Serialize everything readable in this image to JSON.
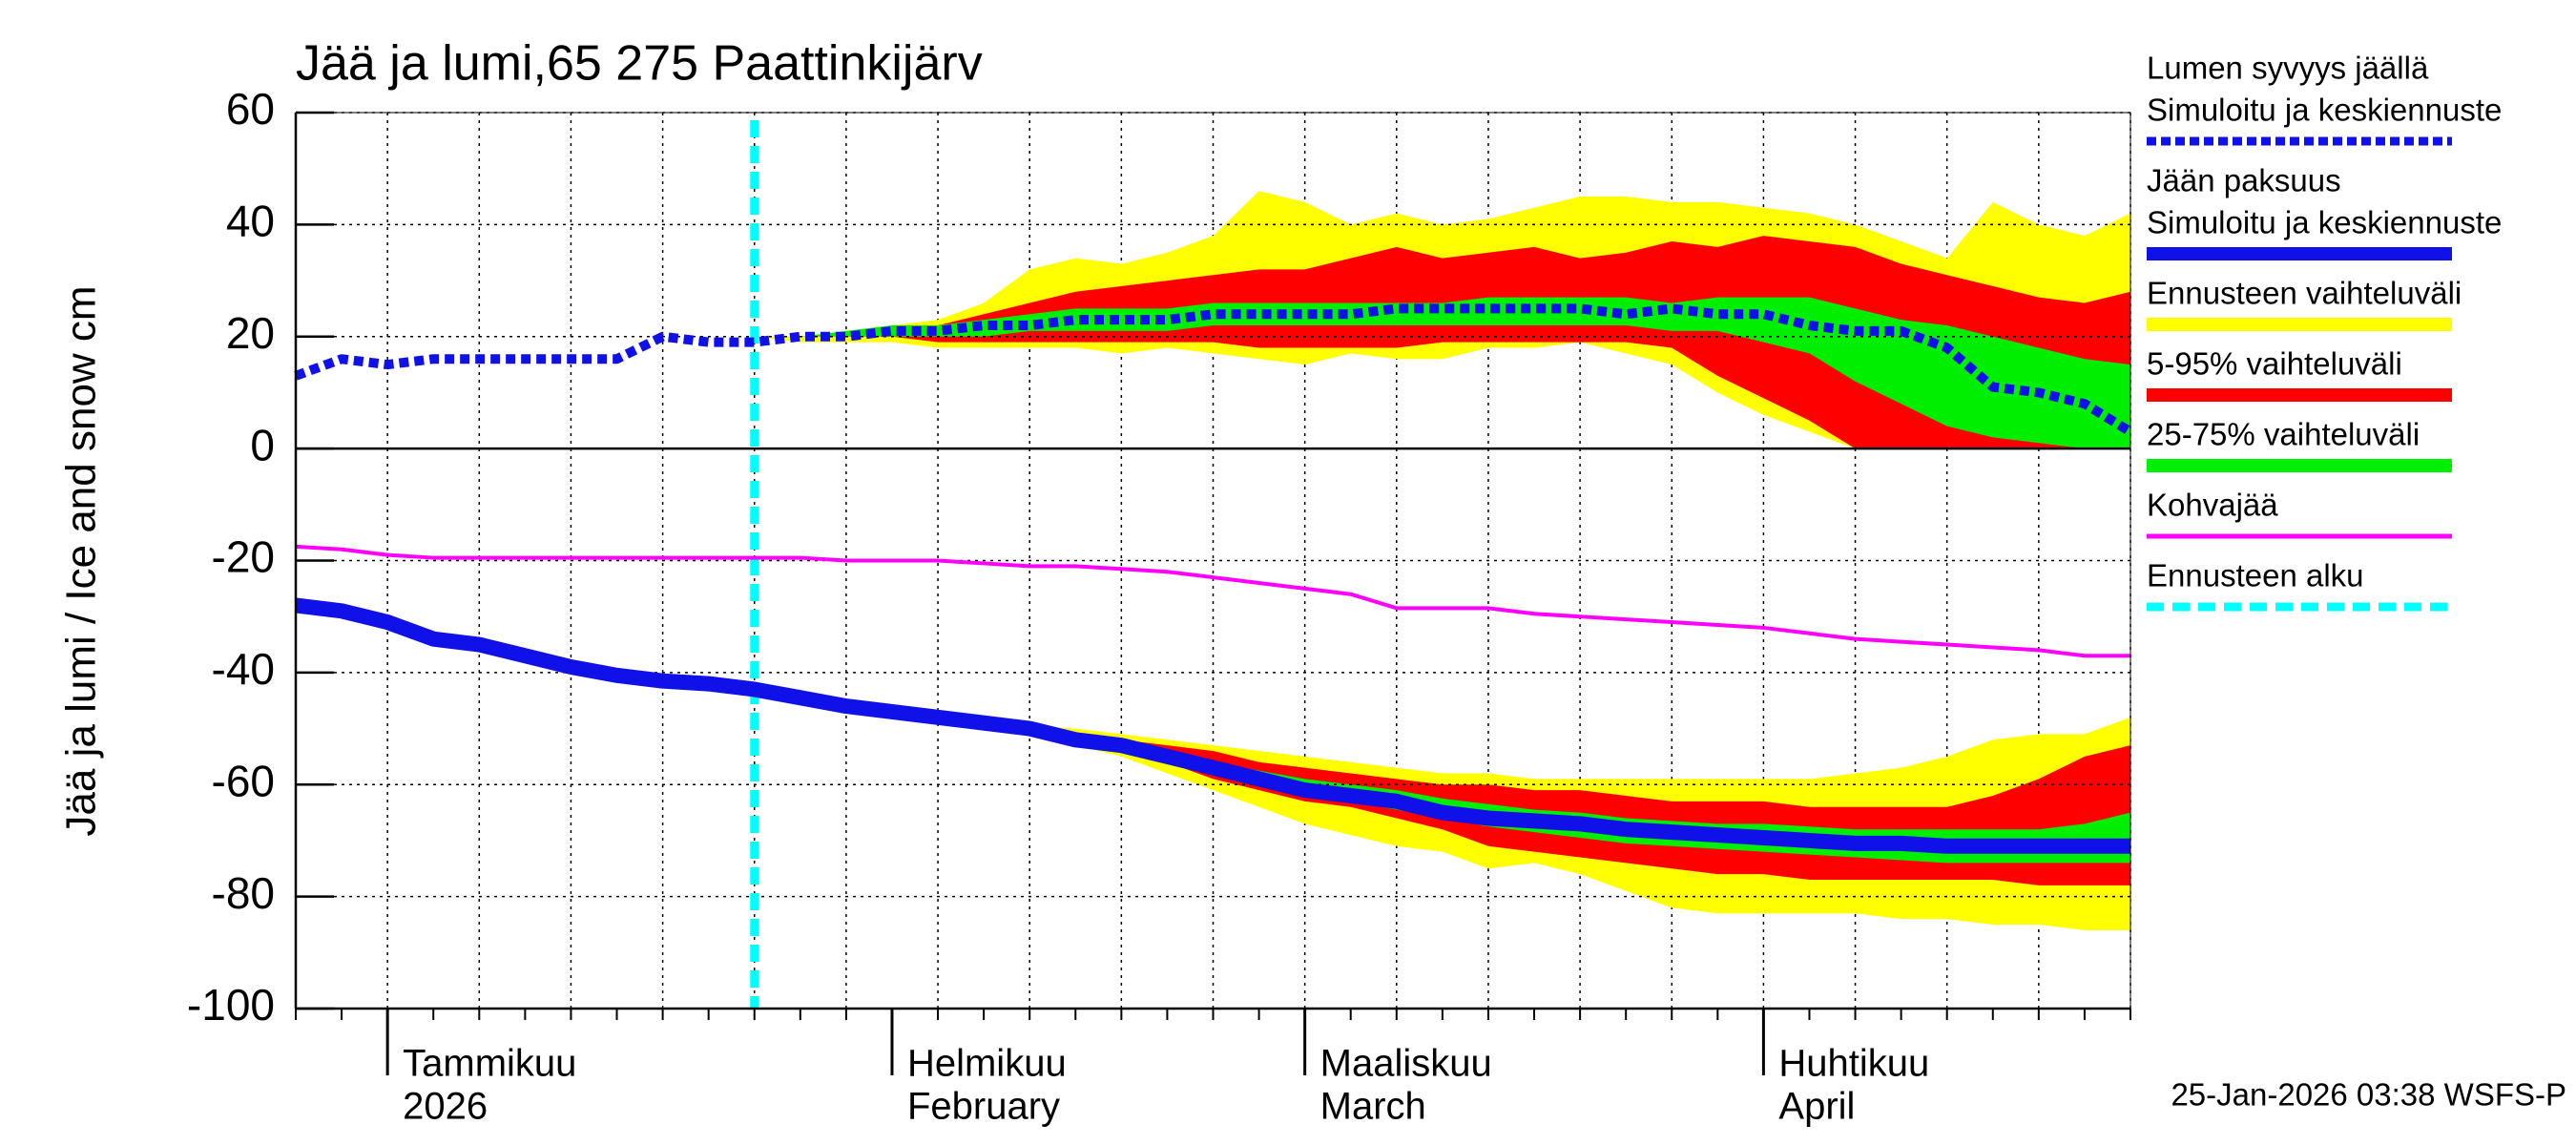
{
  "chart_data": {
    "type": "band-line",
    "title": "Jää ja lumi,65 275 Paattinkijärv",
    "y_label": "Jää ja lumi / Ice and snow    cm",
    "annotation": "25-Jan-2026 03:38 WSFS-P",
    "ylim": [
      -100,
      60
    ],
    "yticks": [
      -100,
      -80,
      -60,
      -40,
      -20,
      0,
      20,
      40,
      60
    ],
    "grid": true,
    "categories": [
      null,
      null,
      "Tammikuu",
      null,
      null,
      null,
      null,
      null,
      null,
      null,
      null,
      null,
      null,
      "Helmikuu",
      null,
      null,
      null,
      null,
      null,
      null,
      null,
      null,
      "Maaliskuu",
      null,
      null,
      null,
      null,
      null,
      null,
      null,
      null,
      null,
      "Huhtikuu",
      null,
      null,
      null,
      null,
      null,
      null,
      null,
      null
    ],
    "category_sublabels": [
      null,
      null,
      "2026",
      null,
      null,
      null,
      null,
      null,
      null,
      null,
      null,
      null,
      null,
      "February",
      null,
      null,
      null,
      null,
      null,
      null,
      null,
      null,
      "March",
      null,
      null,
      null,
      null,
      null,
      null,
      null,
      null,
      null,
      "April",
      null,
      null,
      null,
      null,
      null,
      null,
      null,
      null
    ],
    "series": [
      {
        "name": "Lumen syvyys jäällä",
        "sublabel": "Simuloitu ja keskiennuste",
        "color": "#1010e8",
        "style": "dotted",
        "values": [
          13,
          16,
          15,
          16,
          16,
          16,
          16,
          16,
          20,
          19,
          19,
          20,
          20,
          21,
          21,
          22,
          22,
          23,
          23,
          23,
          24,
          24,
          24,
          24,
          25,
          25,
          25,
          25,
          25,
          24,
          25,
          24,
          24,
          22,
          21,
          21,
          18,
          11,
          10,
          8,
          3
        ]
      },
      {
        "name": "Jään paksuus",
        "sublabel": "Simuloitu ja keskiennuste",
        "color": "#1010e8",
        "style": "solid",
        "values": [
          -28,
          -29,
          -31,
          -34,
          -35,
          -37,
          -39,
          -40.5,
          -41.5,
          -42,
          -43,
          -44.5,
          -46,
          -47,
          -48,
          -49,
          -50,
          -52,
          -53,
          -55,
          -57,
          -59,
          -61,
          -62,
          -63,
          -65,
          -66,
          -66.5,
          -67,
          -68,
          -68.5,
          -69,
          -69.5,
          -70,
          -70.5,
          -70.5,
          -71,
          -71,
          -71,
          -71,
          -71
        ]
      },
      {
        "name": "Kohvajää",
        "color": "#ff00ff",
        "style": "thin",
        "values": [
          -17.5,
          -18,
          -19,
          -19.5,
          -19.5,
          -19.5,
          -19.5,
          -19.5,
          -19.5,
          -19.5,
          -19.5,
          -19.5,
          -20,
          -20,
          -20,
          -20.5,
          -21,
          -21,
          -21.5,
          -22,
          -23,
          -24,
          -25,
          -26,
          -28.5,
          -28.5,
          -28.5,
          -29.5,
          -30,
          -30.5,
          -31,
          -31.5,
          -32,
          -33,
          -34,
          -34.5,
          -35,
          -35.5,
          -36,
          -37,
          -37
        ]
      }
    ],
    "bands": [
      {
        "name": "Ennusteen vaihteluväli",
        "color": "#ffff00",
        "snow_upper": [
          null,
          null,
          null,
          null,
          null,
          null,
          null,
          null,
          null,
          null,
          20,
          20,
          21,
          22,
          23,
          26,
          32,
          34,
          33,
          35,
          38,
          46,
          44,
          40,
          42,
          40,
          41,
          43,
          45,
          45,
          44,
          44,
          43,
          42,
          40,
          37,
          34,
          44,
          40,
          38,
          42
        ],
        "snow_lower": [
          null,
          null,
          null,
          null,
          null,
          null,
          null,
          null,
          null,
          null,
          20,
          19,
          19,
          19,
          18,
          18,
          18,
          18,
          17,
          18,
          17,
          16,
          15,
          17,
          16,
          16,
          18,
          18,
          19,
          17,
          15,
          10,
          6,
          3,
          0,
          0,
          0,
          0,
          0,
          0,
          0
        ],
        "ice_upper": [
          null,
          null,
          null,
          null,
          null,
          null,
          null,
          null,
          null,
          null,
          -43,
          -44.5,
          -46,
          -47,
          -48,
          -49,
          -49.5,
          -50,
          -51,
          -52,
          -53,
          -54,
          -55,
          -56,
          -57,
          -58,
          -58,
          -59,
          -59,
          -59,
          -59,
          -59,
          -59,
          -59,
          -58,
          -57,
          -55,
          -52,
          -51,
          -51,
          -48
        ],
        "ice_lower": [
          null,
          null,
          null,
          null,
          null,
          null,
          null,
          null,
          null,
          null,
          -43,
          -44.5,
          -46,
          -47,
          -48,
          -49,
          -50,
          -53,
          -55,
          -58,
          -61,
          -64,
          -67,
          -69,
          -71,
          -72,
          -75,
          -74,
          -76,
          -79,
          -82,
          -83,
          -83,
          -83,
          -83,
          -84,
          -84,
          -85,
          -85,
          -86,
          -86
        ]
      },
      {
        "name": "5-95% vaihteluväli",
        "color": "#ff0000",
        "snow_upper": [
          null,
          null,
          null,
          null,
          null,
          null,
          null,
          null,
          null,
          null,
          20,
          20,
          20,
          21,
          22,
          24,
          26,
          28,
          29,
          30,
          31,
          32,
          32,
          34,
          36,
          34,
          35,
          36,
          34,
          35,
          37,
          36,
          38,
          37,
          36,
          33,
          31,
          29,
          27,
          26,
          28
        ],
        "snow_lower": [
          null,
          null,
          null,
          null,
          null,
          null,
          null,
          null,
          null,
          null,
          20,
          20,
          20,
          20,
          19,
          19,
          19,
          19,
          19,
          19,
          19,
          18,
          18,
          18,
          18,
          19,
          19,
          19,
          19,
          19,
          18,
          13,
          9,
          5,
          0,
          0,
          0,
          0,
          0,
          0,
          0
        ],
        "ice_upper": [
          null,
          null,
          null,
          null,
          null,
          null,
          null,
          null,
          null,
          null,
          -43,
          -44.5,
          -46,
          -47,
          -48,
          -49,
          -50,
          -51,
          -52,
          -53,
          -54,
          -56,
          -57,
          -58,
          -59,
          -60,
          -60,
          -61,
          -61,
          -62,
          -63,
          -63,
          -63,
          -64,
          -64,
          -64,
          -64,
          -62,
          -59,
          -55,
          -53
        ],
        "ice_lower": [
          null,
          null,
          null,
          null,
          null,
          null,
          null,
          null,
          null,
          null,
          -43,
          -44.5,
          -46,
          -47,
          -48,
          -49,
          -50,
          -52,
          -54,
          -56,
          -59,
          -61,
          -63,
          -64,
          -66,
          -68,
          -71,
          -72,
          -73,
          -74,
          -75,
          -76,
          -76,
          -77,
          -77,
          -77,
          -77,
          -77,
          -78,
          -78,
          -78
        ]
      },
      {
        "name": "25-75% vaihteluväli",
        "color": "#00ee00",
        "snow_upper": [
          null,
          null,
          null,
          null,
          null,
          null,
          null,
          null,
          null,
          null,
          20,
          20,
          21,
          22,
          22,
          23,
          24,
          25,
          25,
          25,
          26,
          26,
          26,
          26,
          26,
          26,
          27,
          27,
          27,
          27,
          26,
          27,
          27,
          27,
          25,
          23,
          22,
          20,
          18,
          16,
          15
        ],
        "snow_lower": [
          null,
          null,
          null,
          null,
          null,
          null,
          null,
          null,
          null,
          null,
          20,
          20,
          20,
          20,
          20,
          20,
          21,
          21,
          21,
          21,
          22,
          22,
          22,
          22,
          22,
          22,
          22,
          22,
          22,
          22,
          21,
          21,
          19,
          17,
          12,
          8,
          4,
          2,
          1,
          0,
          0
        ],
        "ice_upper": [
          null,
          null,
          null,
          null,
          null,
          null,
          null,
          null,
          null,
          null,
          -43,
          -44.5,
          -46,
          -47,
          -48,
          -49,
          -50,
          -51.5,
          -52.5,
          -54,
          -56,
          -57.5,
          -59,
          -60,
          -61,
          -62.5,
          -63.5,
          -64.5,
          -65,
          -66,
          -66.5,
          -67,
          -67,
          -67.5,
          -68,
          -68,
          -68,
          -68,
          -68,
          -67,
          -65
        ],
        "ice_lower": [
          null,
          null,
          null,
          null,
          null,
          null,
          null,
          null,
          null,
          null,
          -43,
          -44.5,
          -46,
          -47,
          -48,
          -49,
          -50,
          -52.5,
          -54,
          -56,
          -58,
          -60,
          -62,
          -63,
          -64.5,
          -66,
          -67.5,
          -68.5,
          -69.5,
          -70.5,
          -71,
          -71.5,
          -72,
          -72.5,
          -73,
          -73.5,
          -74,
          -74,
          -74,
          -74,
          -74
        ]
      }
    ],
    "forecast_start": {
      "name": "Ennusteen alku",
      "color": "#00ffff"
    }
  }
}
